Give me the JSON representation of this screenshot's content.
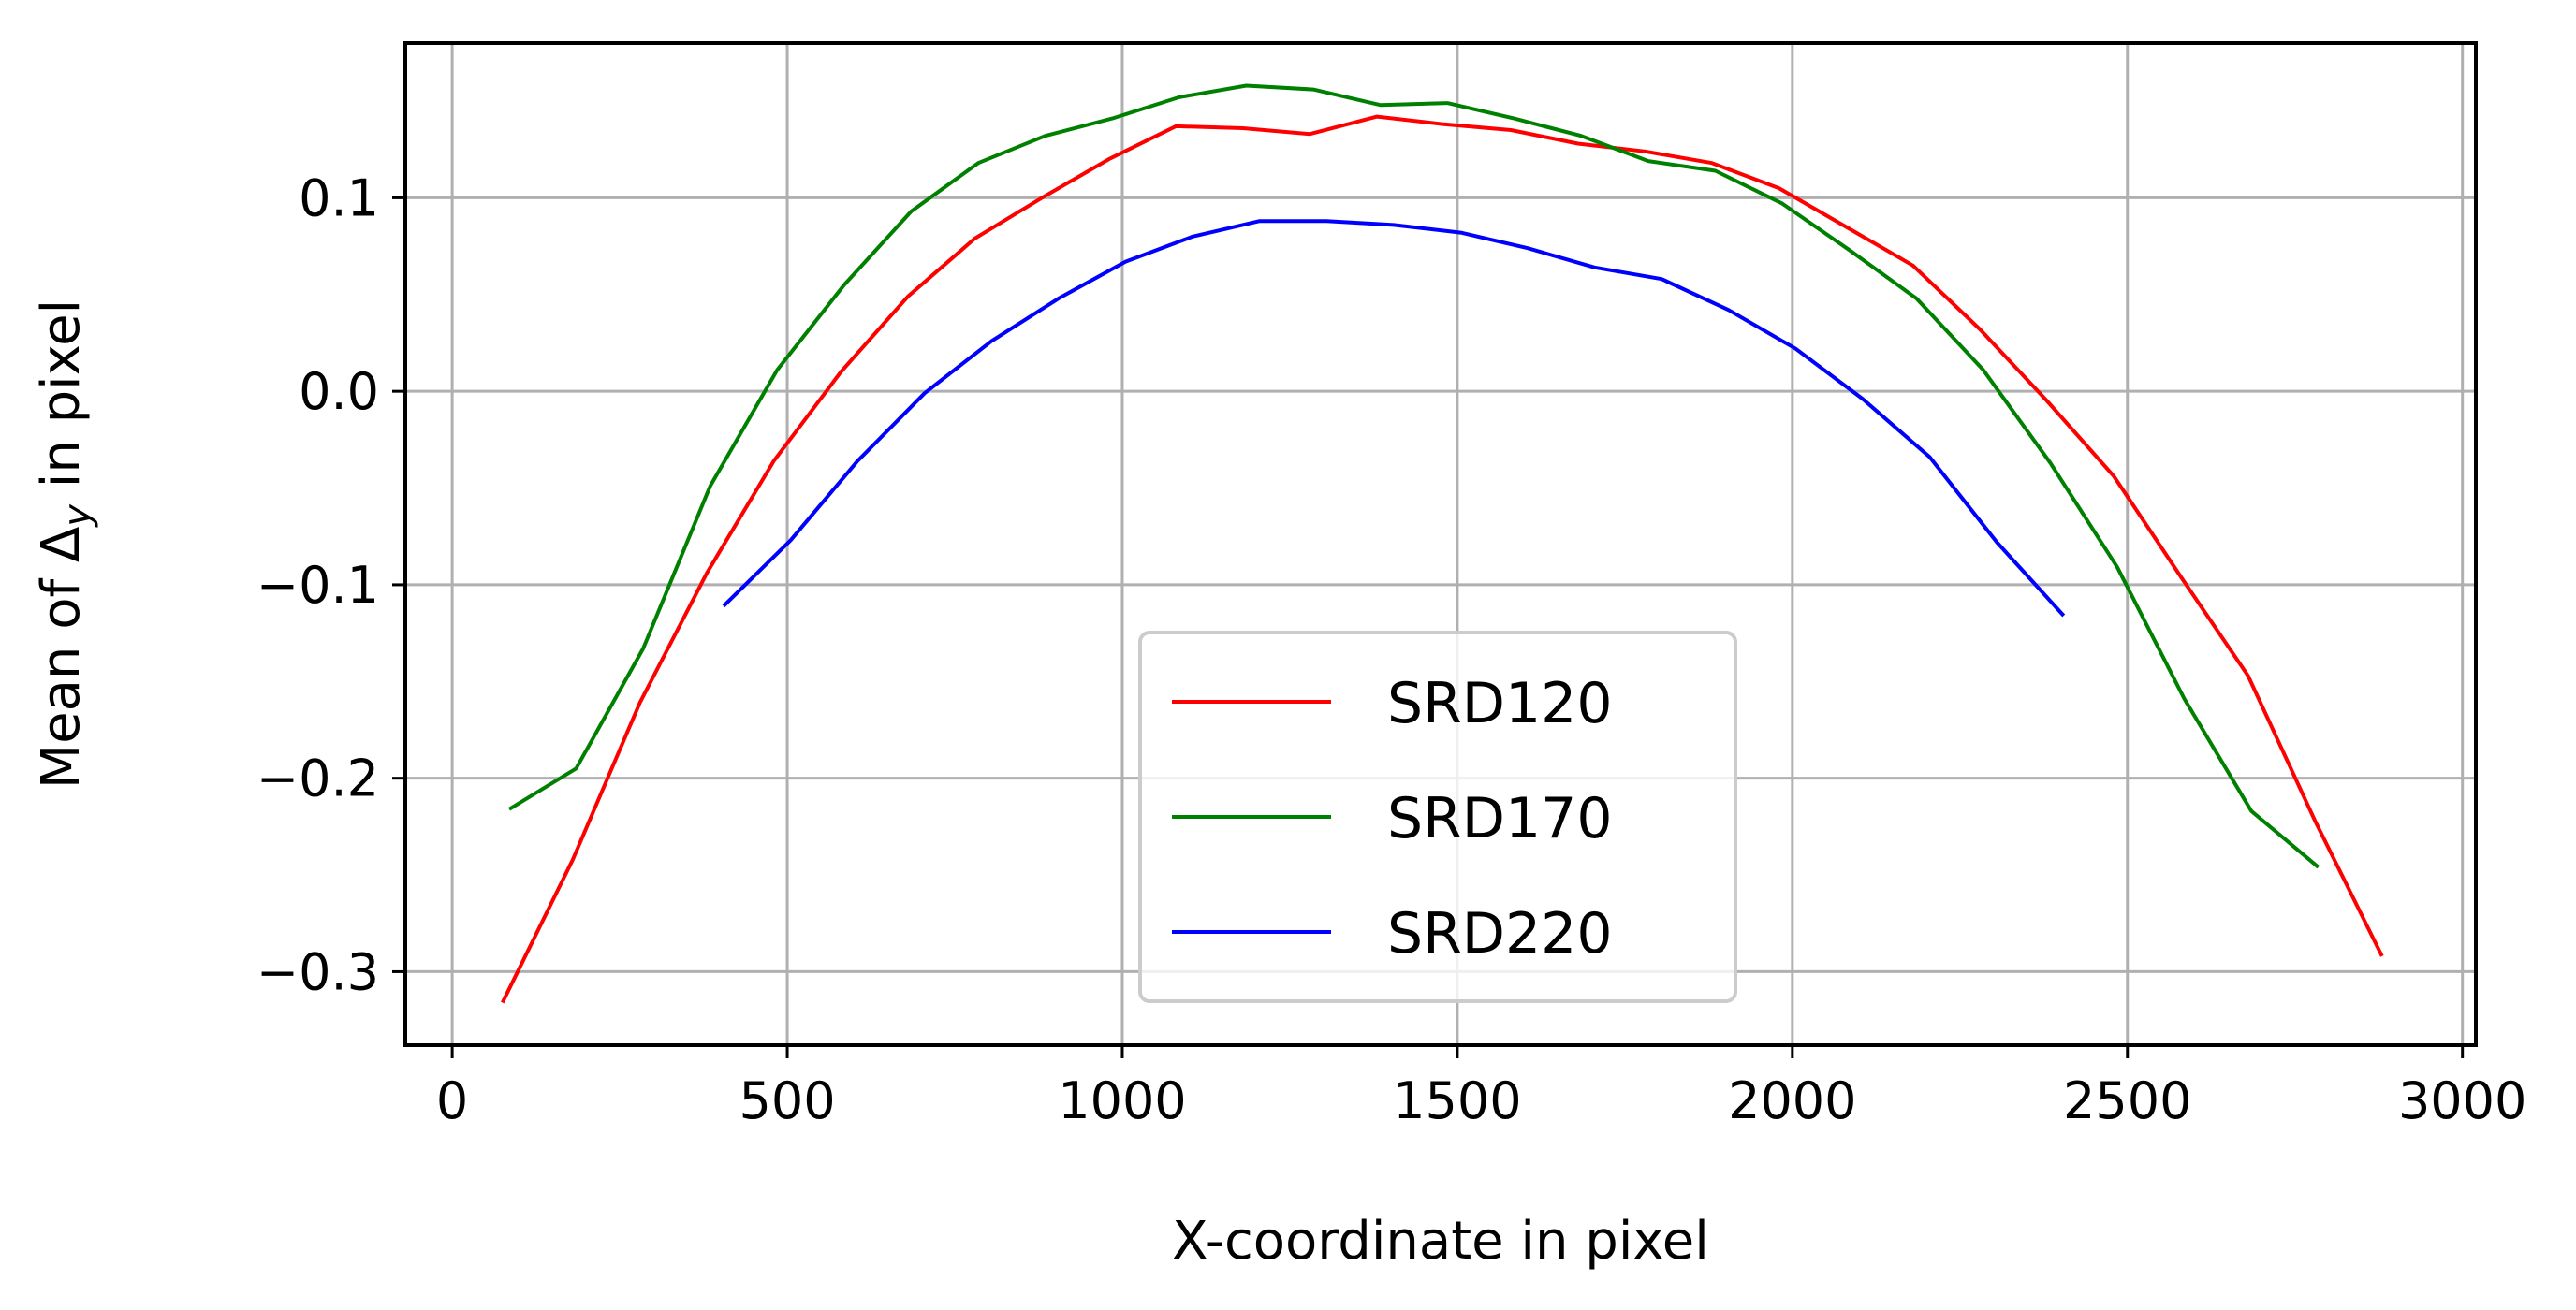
{
  "chart_data": {
    "type": "line",
    "title": "",
    "xlabel": "X-coordinate in pixel",
    "ylabel": "Mean of Δy in pixel",
    "ylabel_parts": {
      "prefix": "Mean of Δ",
      "subscript": "y",
      "suffix": " in pixel"
    },
    "xlim": [
      -70,
      3020
    ],
    "ylim": [
      -0.338,
      0.18
    ],
    "xticks": [
      0,
      500,
      1000,
      1500,
      2000,
      2500,
      3000
    ],
    "xtick_labels": [
      "0",
      "500",
      "1000",
      "1500",
      "2000",
      "2500",
      "3000"
    ],
    "yticks": [
      -0.3,
      -0.2,
      -0.1,
      0.0,
      0.1
    ],
    "ytick_labels": [
      "−0.3",
      "−0.2",
      "−0.1",
      "0.0",
      "0.1"
    ],
    "grid": true,
    "legend_position": "bottom-center",
    "series": [
      {
        "name": "SRD120",
        "color": "#ff0000",
        "x": [
          75,
          180,
          280,
          380,
          480,
          580,
          680,
          780,
          880,
          980,
          1080,
          1180,
          1280,
          1380,
          1480,
          1580,
          1680,
          1780,
          1880,
          1980,
          2080,
          2180,
          2280,
          2380,
          2480,
          2580,
          2680,
          2780,
          2880
        ],
        "y": [
          -0.316,
          -0.242,
          -0.161,
          -0.094,
          -0.036,
          0.01,
          0.049,
          0.079,
          0.1,
          0.12,
          0.137,
          0.136,
          0.133,
          0.142,
          0.138,
          0.135,
          0.128,
          0.124,
          0.118,
          0.105,
          0.085,
          0.065,
          0.032,
          -0.005,
          -0.044,
          -0.096,
          -0.147,
          -0.222,
          -0.292
        ]
      },
      {
        "name": "SRD170",
        "color": "#008000",
        "x": [
          85,
          185,
          285,
          385,
          485,
          585,
          685,
          785,
          885,
          985,
          1085,
          1185,
          1285,
          1385,
          1485,
          1585,
          1685,
          1785,
          1885,
          1985,
          2085,
          2185,
          2285,
          2385,
          2485,
          2585,
          2685,
          2785
        ],
        "y": [
          -0.216,
          -0.195,
          -0.133,
          -0.049,
          0.011,
          0.055,
          0.093,
          0.118,
          0.132,
          0.141,
          0.152,
          0.158,
          0.156,
          0.148,
          0.149,
          0.141,
          0.132,
          0.119,
          0.114,
          0.097,
          0.073,
          0.048,
          0.011,
          -0.037,
          -0.091,
          -0.159,
          -0.217,
          -0.246
        ]
      },
      {
        "name": "SRD220",
        "color": "#0000ff",
        "x": [
          405,
          505,
          605,
          705,
          805,
          905,
          1005,
          1105,
          1205,
          1305,
          1405,
          1505,
          1605,
          1705,
          1805,
          1905,
          2005,
          2105,
          2205,
          2305,
          2405
        ],
        "y": [
          -0.111,
          -0.077,
          -0.036,
          -0.001,
          0.026,
          0.048,
          0.067,
          0.08,
          0.088,
          0.088,
          0.086,
          0.082,
          0.074,
          0.064,
          0.058,
          0.042,
          0.022,
          -0.004,
          -0.034,
          -0.078,
          -0.116
        ]
      }
    ]
  }
}
